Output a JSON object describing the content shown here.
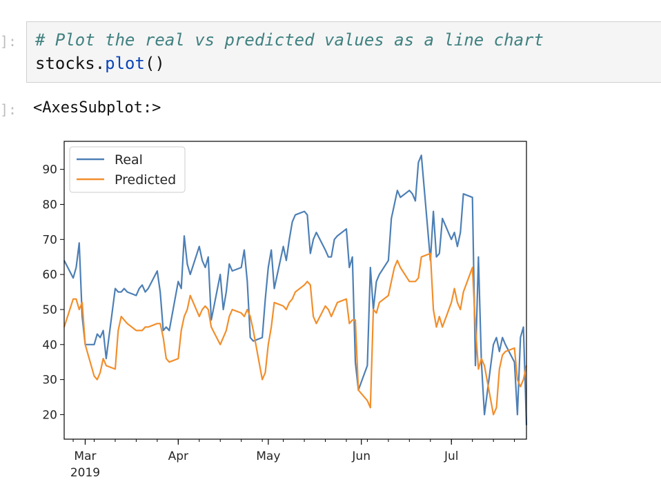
{
  "cell": {
    "in_prompt": "]:",
    "code_comment": "# Plot the real vs predicted values as a line chart",
    "code_ident": "stocks",
    "code_dot": ".",
    "code_method": "plot",
    "code_parens": "()",
    "out_prompt": "]:",
    "output_text": "<AxesSubplot:>"
  },
  "chart_data": {
    "type": "line",
    "title": "",
    "xlabel": "",
    "ylabel": "",
    "ylim": [
      13,
      98
    ],
    "xlim": [
      "2019-02-22",
      "2019-07-26"
    ],
    "grid": false,
    "legend_position": "top-left",
    "y_ticks": [
      20,
      30,
      40,
      50,
      60,
      70,
      80,
      90
    ],
    "x_ticks": [
      {
        "date": "2019-03-01",
        "label": "Mar",
        "sublabel": "2019"
      },
      {
        "date": "2019-04-01",
        "label": "Apr",
        "sublabel": ""
      },
      {
        "date": "2019-05-01",
        "label": "May",
        "sublabel": ""
      },
      {
        "date": "2019-06-01",
        "label": "Jun",
        "sublabel": ""
      },
      {
        "date": "2019-07-01",
        "label": "Jul",
        "sublabel": ""
      }
    ],
    "x": [
      "2019-02-22",
      "2019-02-25",
      "2019-02-26",
      "2019-02-27",
      "2019-02-28",
      "2019-03-01",
      "2019-03-04",
      "2019-03-05",
      "2019-03-06",
      "2019-03-07",
      "2019-03-08",
      "2019-03-11",
      "2019-03-12",
      "2019-03-13",
      "2019-03-14",
      "2019-03-15",
      "2019-03-18",
      "2019-03-19",
      "2019-03-20",
      "2019-03-21",
      "2019-03-22",
      "2019-03-25",
      "2019-03-26",
      "2019-03-27",
      "2019-03-28",
      "2019-03-29",
      "2019-04-01",
      "2019-04-02",
      "2019-04-03",
      "2019-04-04",
      "2019-04-05",
      "2019-04-08",
      "2019-04-09",
      "2019-04-10",
      "2019-04-11",
      "2019-04-12",
      "2019-04-15",
      "2019-04-16",
      "2019-04-17",
      "2019-04-18",
      "2019-04-19",
      "2019-04-22",
      "2019-04-23",
      "2019-04-24",
      "2019-04-25",
      "2019-04-26",
      "2019-04-29",
      "2019-04-30",
      "2019-05-01",
      "2019-05-02",
      "2019-05-03",
      "2019-05-06",
      "2019-05-07",
      "2019-05-08",
      "2019-05-09",
      "2019-05-10",
      "2019-05-13",
      "2019-05-14",
      "2019-05-15",
      "2019-05-16",
      "2019-05-17",
      "2019-05-20",
      "2019-05-21",
      "2019-05-22",
      "2019-05-23",
      "2019-05-24",
      "2019-05-27",
      "2019-05-28",
      "2019-05-29",
      "2019-05-30",
      "2019-05-31",
      "2019-06-03",
      "2019-06-04",
      "2019-06-05",
      "2019-06-06",
      "2019-06-07",
      "2019-06-10",
      "2019-06-11",
      "2019-06-12",
      "2019-06-13",
      "2019-06-14",
      "2019-06-17",
      "2019-06-18",
      "2019-06-19",
      "2019-06-20",
      "2019-06-21",
      "2019-06-24",
      "2019-06-25",
      "2019-06-26",
      "2019-06-27",
      "2019-06-28",
      "2019-07-01",
      "2019-07-02",
      "2019-07-03",
      "2019-07-04",
      "2019-07-05",
      "2019-07-08",
      "2019-07-09",
      "2019-07-10",
      "2019-07-11",
      "2019-07-12",
      "2019-07-15",
      "2019-07-16",
      "2019-07-17",
      "2019-07-18",
      "2019-07-19",
      "2019-07-22",
      "2019-07-23",
      "2019-07-24",
      "2019-07-25",
      "2019-07-26"
    ],
    "series": [
      {
        "name": "Real",
        "color": "#4c7fb5",
        "values": [
          64,
          59,
          62,
          69,
          48,
          40,
          40,
          43,
          42,
          44,
          36,
          56,
          55,
          55,
          56,
          55,
          54,
          56,
          57,
          55,
          56,
          61,
          55,
          44,
          45,
          44,
          58,
          56,
          71,
          63,
          60,
          68,
          64,
          62,
          65,
          47,
          60,
          50,
          55,
          63,
          61,
          62,
          67,
          58,
          42,
          41,
          42,
          53,
          62,
          67,
          56,
          68,
          64,
          70,
          75,
          77,
          78,
          77,
          66,
          70,
          72,
          67,
          65,
          65,
          70,
          71,
          73,
          62,
          65,
          35,
          27,
          34,
          62,
          50,
          58,
          60,
          64,
          76,
          80,
          84,
          82,
          84,
          83,
          81,
          92,
          94,
          64,
          78,
          65,
          66,
          76,
          70,
          72,
          68,
          72,
          83,
          82,
          34,
          65,
          35,
          20,
          40,
          42,
          38,
          42,
          40,
          35,
          20,
          42,
          45,
          17
        ]
      },
      {
        "name": "Predicted",
        "color": "#f28e2b",
        "values": [
          45,
          53,
          53,
          50,
          52,
          40,
          31,
          30,
          32,
          36,
          34,
          33,
          44,
          48,
          47,
          46,
          44,
          44,
          44,
          45,
          45,
          46,
          46,
          42,
          36,
          35,
          36,
          44,
          48,
          50,
          54,
          48,
          50,
          51,
          50,
          45,
          40,
          42,
          44,
          48,
          50,
          49,
          48,
          50,
          48,
          44,
          30,
          32,
          40,
          45,
          52,
          51,
          50,
          52,
          53,
          55,
          57,
          58,
          57,
          48,
          46,
          51,
          50,
          48,
          50,
          52,
          53,
          46,
          47,
          47,
          27,
          24,
          22,
          50,
          49,
          52,
          54,
          58,
          62,
          64,
          62,
          58,
          58,
          58,
          59,
          65,
          66,
          50,
          45,
          48,
          45,
          52,
          56,
          52,
          50,
          55,
          62,
          45,
          33,
          36,
          34,
          20,
          22,
          33,
          37,
          38,
          39,
          30,
          28,
          30,
          34
        ]
      }
    ]
  }
}
